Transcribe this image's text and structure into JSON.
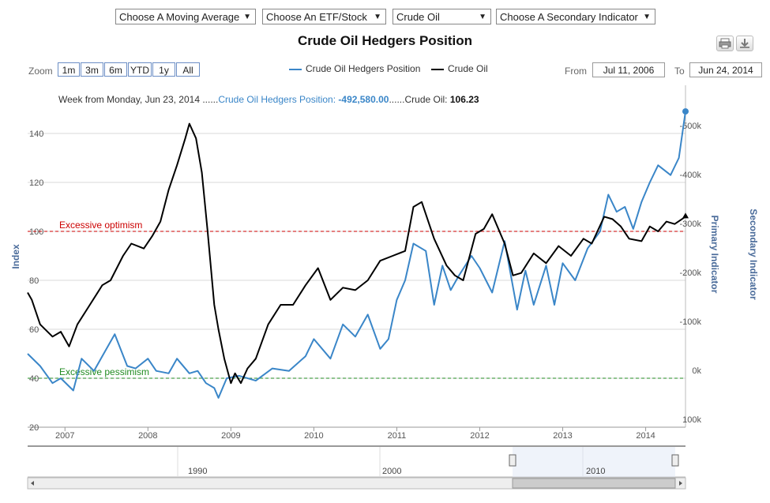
{
  "dropdowns": [
    {
      "label": "Choose A Moving Average"
    },
    {
      "label": "Choose An ETF/Stock"
    },
    {
      "label": "Crude Oil"
    },
    {
      "label": "Choose A Secondary Indicator"
    }
  ],
  "dropdown_arrow": "▼",
  "toolbar": {
    "print_icon": "printer-icon",
    "download_icon": "download-icon"
  },
  "zoom": {
    "label": "Zoom",
    "buttons": [
      "1m",
      "3m",
      "6m",
      "YTD",
      "1y",
      "All"
    ]
  },
  "range": {
    "from_label": "From",
    "from_value": "Jul 11, 2006",
    "to_label": "To",
    "to_value": "Jun 24, 2014"
  },
  "info": {
    "prefix": "Week from Monday, Jun 23, 2014 ......",
    "s1_name": "Crude Oil Hedgers Position: ",
    "s1_value": "-492,580.00",
    "sep": "......",
    "s2_name": "Crude Oil: ",
    "s2_value": "106.23"
  },
  "colors": {
    "hedgers": "#3a86c8",
    "crude": "#000000",
    "optimism": "#cc0000",
    "pessimism": "#228b22",
    "axis_title": "#4a6b9a"
  },
  "navigator": {
    "labels": [
      "1990",
      "2000",
      "2010"
    ]
  },
  "chart_data": {
    "type": "line",
    "title": "Crude Oil Hedgers Position",
    "x_range": [
      2006.55,
      2014.48
    ],
    "x_ticks": [
      "2007",
      "2008",
      "2009",
      "2010",
      "2011",
      "2012",
      "2013",
      "2014"
    ],
    "left_axis": {
      "title": "Index",
      "ticks": [
        "20",
        "40",
        "60",
        "80",
        "100",
        "120",
        "140"
      ],
      "range": [
        20,
        150
      ]
    },
    "right_axis_primary": {
      "title": "Primary Indicator",
      "ticks": [
        "-500k",
        "-400k",
        "-300k",
        "-200k",
        "-100k",
        "0k",
        "100k"
      ],
      "range": [
        100000,
        -500000
      ]
    },
    "right_axis_secondary": {
      "title": "Secondary Indicator"
    },
    "reference_lines": [
      {
        "label": "Excessive optimism",
        "value": 100
      },
      {
        "label": "Excessive pessimism",
        "value": 40
      }
    ],
    "series": [
      {
        "name": "Crude Oil Hedgers Position",
        "axis": "left",
        "x": [
          2006.55,
          2006.7,
          2006.85,
          2006.95,
          2007.1,
          2007.2,
          2007.35,
          2007.5,
          2007.6,
          2007.75,
          2007.85,
          2008.0,
          2008.1,
          2008.25,
          2008.35,
          2008.5,
          2008.6,
          2008.7,
          2008.8,
          2008.85,
          2008.95,
          2009.1,
          2009.3,
          2009.5,
          2009.7,
          2009.9,
          2010.0,
          2010.2,
          2010.35,
          2010.5,
          2010.65,
          2010.8,
          2010.9,
          2011.0,
          2011.1,
          2011.2,
          2011.35,
          2011.45,
          2011.55,
          2011.65,
          2011.75,
          2011.9,
          2012.0,
          2012.15,
          2012.3,
          2012.45,
          2012.55,
          2012.65,
          2012.8,
          2012.9,
          2013.0,
          2013.15,
          2013.3,
          2013.45,
          2013.55,
          2013.65,
          2013.75,
          2013.85,
          2013.95,
          2014.05,
          2014.15,
          2014.3,
          2014.4,
          2014.48
        ],
        "values": [
          50,
          45,
          38,
          40,
          35,
          48,
          43,
          52,
          58,
          45,
          44,
          48,
          43,
          42,
          48,
          42,
          43,
          38,
          36,
          32,
          40,
          41,
          39,
          44,
          43,
          49,
          56,
          48,
          62,
          57,
          66,
          52,
          56,
          72,
          80,
          95,
          92,
          70,
          86,
          76,
          82,
          90,
          85,
          75,
          96,
          68,
          84,
          70,
          86,
          70,
          87,
          80,
          93,
          100,
          115,
          108,
          110,
          101,
          112,
          120,
          127,
          123,
          130,
          149
        ]
      },
      {
        "name": "Crude Oil",
        "axis": "left",
        "x": [
          2006.55,
          2006.6,
          2006.7,
          2006.85,
          2006.95,
          2007.05,
          2007.15,
          2007.3,
          2007.45,
          2007.55,
          2007.7,
          2007.8,
          2007.95,
          2008.05,
          2008.15,
          2008.25,
          2008.35,
          2008.45,
          2008.5,
          2008.58,
          2008.65,
          2008.72,
          2008.8,
          2008.85,
          2008.92,
          2009.0,
          2009.05,
          2009.12,
          2009.2,
          2009.3,
          2009.45,
          2009.6,
          2009.75,
          2009.9,
          2010.05,
          2010.2,
          2010.35,
          2010.5,
          2010.65,
          2010.8,
          2010.95,
          2011.1,
          2011.2,
          2011.3,
          2011.45,
          2011.6,
          2011.7,
          2011.8,
          2011.95,
          2012.05,
          2012.15,
          2012.3,
          2012.4,
          2012.5,
          2012.65,
          2012.8,
          2012.95,
          2013.1,
          2013.25,
          2013.35,
          2013.5,
          2013.6,
          2013.7,
          2013.8,
          2013.95,
          2014.05,
          2014.15,
          2014.25,
          2014.35,
          2014.48
        ],
        "values": [
          75,
          72,
          62,
          57,
          59,
          53,
          62,
          70,
          78,
          80,
          90,
          95,
          93,
          98,
          104,
          117,
          127,
          138,
          144,
          138,
          124,
          100,
          70,
          60,
          48,
          38,
          42,
          38,
          44,
          48,
          62,
          70,
          70,
          78,
          85,
          72,
          77,
          76,
          80,
          88,
          90,
          92,
          110,
          112,
          97,
          86,
          82,
          80,
          99,
          101,
          107,
          95,
          82,
          83,
          91,
          87,
          94,
          90,
          97,
          95,
          106,
          105,
          102,
          97,
          96,
          102,
          100,
          104,
          103,
          106
        ]
      }
    ]
  }
}
